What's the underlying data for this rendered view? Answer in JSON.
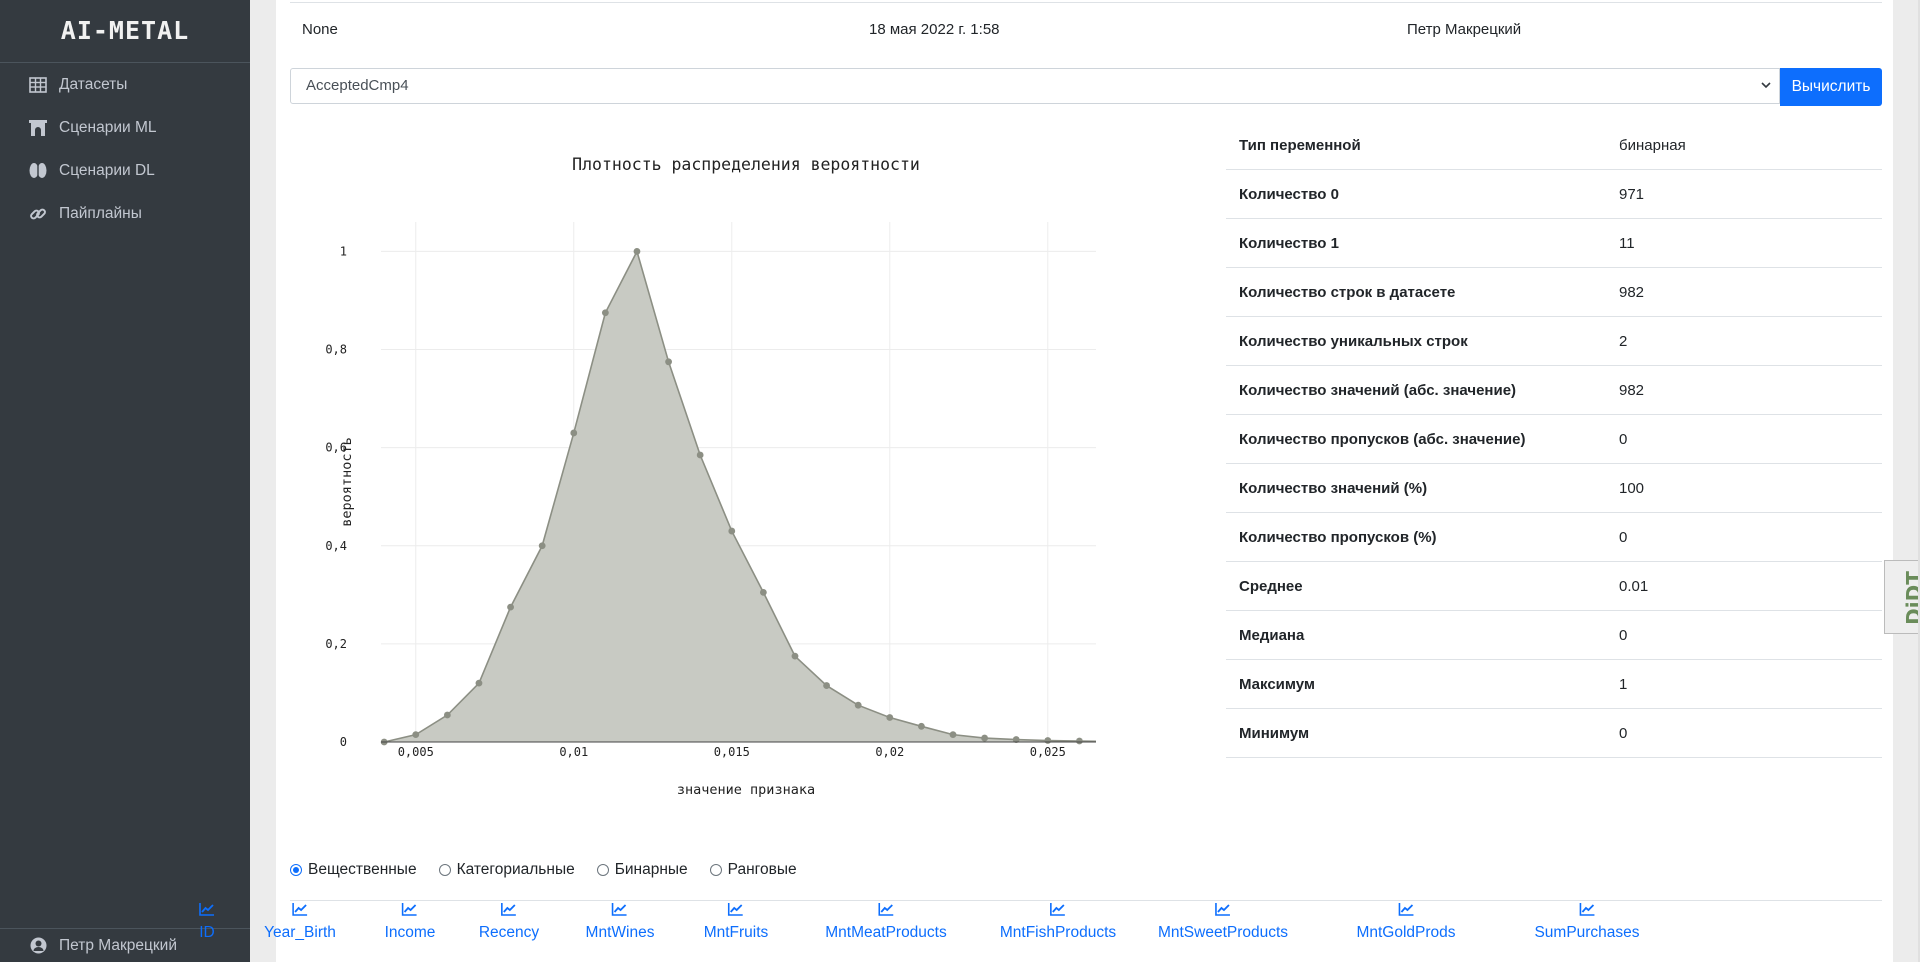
{
  "sidebar": {
    "brand": "AI-METAL",
    "items": [
      {
        "label": "Датасеты",
        "icon": "table-icon"
      },
      {
        "label": "Сценарии ML",
        "icon": "archway-icon"
      },
      {
        "label": "Сценарии DL",
        "icon": "brain-icon"
      },
      {
        "label": "Пайплайны",
        "icon": "link-icon"
      }
    ],
    "user": "Петр Макрецкий"
  },
  "top_row": {
    "col1": "None",
    "col2": "18 мая 2022 г. 1:58",
    "col3": "Петр Макрецкий"
  },
  "select": {
    "value": "AcceptedCmp4",
    "button": "Вычислить"
  },
  "chart_data": {
    "type": "area",
    "title": "Плотность распределения вероятности",
    "xlabel": "значение признака",
    "ylabel": "вероятность",
    "xlim": [
      0.0039,
      0.027
    ],
    "ylim": [
      0,
      1.06
    ],
    "x_ticks": [
      "0,005",
      "0,01",
      "0,015",
      "0,02",
      "0,025"
    ],
    "x_tick_values": [
      0.005,
      0.01,
      0.015,
      0.02,
      0.025
    ],
    "y_ticks": [
      "0",
      "0,2",
      "0,4",
      "0,6",
      "0,8",
      "1"
    ],
    "y_tick_values": [
      0,
      0.2,
      0.4,
      0.6,
      0.8,
      1
    ],
    "x": [
      0.004,
      0.005,
      0.006,
      0.007,
      0.008,
      0.009,
      0.01,
      0.011,
      0.012,
      0.013,
      0.014,
      0.015,
      0.016,
      0.017,
      0.018,
      0.019,
      0.02,
      0.021,
      0.022,
      0.023,
      0.024,
      0.025,
      0.026,
      0.027
    ],
    "y": [
      0.0,
      0.015,
      0.055,
      0.12,
      0.275,
      0.4,
      0.63,
      0.875,
      1.0,
      0.775,
      0.585,
      0.43,
      0.305,
      0.175,
      0.115,
      0.075,
      0.05,
      0.032,
      0.015,
      0.008,
      0.005,
      0.003,
      0.002,
      0.001
    ],
    "grid": true,
    "fill_color": "#c8cac3",
    "line_color": "#8c8f84"
  },
  "stats": [
    {
      "k": "Тип переменной",
      "v": "бинарная"
    },
    {
      "k": "Количество 0",
      "v": "971"
    },
    {
      "k": "Количество 1",
      "v": "11"
    },
    {
      "k": "Количество строк в датасете",
      "v": "982"
    },
    {
      "k": "Количество уникальных строк",
      "v": "2"
    },
    {
      "k": "Количество значений (абс. значение)",
      "v": "982"
    },
    {
      "k": "Количество пропусков (абс. значение)",
      "v": "0"
    },
    {
      "k": "Количество значений (%)",
      "v": "100"
    },
    {
      "k": "Количество пропусков (%)",
      "v": "0"
    },
    {
      "k": "Среднее",
      "v": "0.01"
    },
    {
      "k": "Медиана",
      "v": "0"
    },
    {
      "k": "Максимум",
      "v": "1"
    },
    {
      "k": "Минимум",
      "v": "0"
    }
  ],
  "radios": [
    {
      "label": "Вещественные",
      "checked": true
    },
    {
      "label": "Категориальные",
      "checked": false
    },
    {
      "label": "Бинарные",
      "checked": false
    },
    {
      "label": "Ранговые",
      "checked": false
    }
  ],
  "features": [
    "ID",
    "Year_Birth",
    "Income",
    "Recency",
    "MntWines",
    "MntFruits",
    "MntMeatProducts",
    "MntFishProducts",
    "MntSweetProducts",
    "MntGoldProds",
    "SumPurchases"
  ],
  "djdt": "DjDT",
  "accent": "#0d6efd"
}
